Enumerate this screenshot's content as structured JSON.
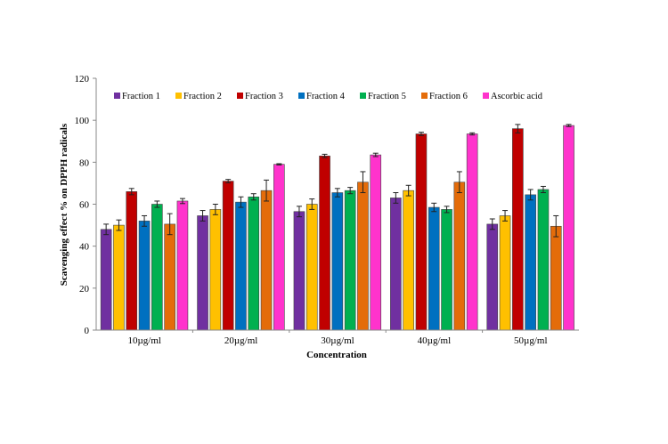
{
  "chart_data": {
    "type": "bar",
    "title": "",
    "xlabel": "Concentration",
    "ylabel": "Scavenging effect  % on DPPH radicals",
    "ylim": [
      0,
      120
    ],
    "yticks": [
      "0",
      "20",
      "40",
      "60",
      "80",
      "100",
      "120"
    ],
    "yticks_values": [
      0,
      20,
      40,
      60,
      80,
      100,
      120
    ],
    "grid": false,
    "legend_position": "top",
    "categories": [
      "10µg/ml",
      "20µg/ml",
      "30µg/ml",
      "40µg/ml",
      "50µg/ml"
    ],
    "series": [
      {
        "name": "Fraction 1",
        "color": "#7030a0",
        "values": [
          48,
          54.5,
          56.5,
          63,
          50.5
        ],
        "errors": [
          2.5,
          2.5,
          2.5,
          2.5,
          2.5
        ]
      },
      {
        "name": "Fraction 2",
        "color": "#ffc000",
        "values": [
          50,
          57.5,
          60,
          66.5,
          54.5
        ],
        "errors": [
          2.5,
          2.5,
          2.5,
          2.5,
          2.5
        ]
      },
      {
        "name": "Fraction 3",
        "color": "#c00000",
        "values": [
          66,
          71,
          83,
          93.5,
          96
        ],
        "errors": [
          1.5,
          0.8,
          0.8,
          0.8,
          2
        ]
      },
      {
        "name": "Fraction 4",
        "color": "#0070c0",
        "values": [
          52,
          61,
          65.5,
          58.5,
          64.5
        ],
        "errors": [
          2.5,
          2.5,
          2,
          2,
          2.5
        ]
      },
      {
        "name": "Fraction 5",
        "color": "#00b050",
        "values": [
          60,
          63.5,
          66.5,
          57.5,
          67
        ],
        "errors": [
          1.5,
          1.5,
          1.5,
          1.5,
          1.5
        ]
      },
      {
        "name": "Fraction 6",
        "color": "#e46c0a",
        "values": [
          50.5,
          66.5,
          70.5,
          70.5,
          49.5
        ],
        "errors": [
          5,
          5,
          5,
          5,
          5
        ]
      },
      {
        "name": "Ascorbic acid",
        "color": "#ff33cc",
        "values": [
          61.5,
          79,
          83.5,
          93.5,
          97.5
        ],
        "errors": [
          1.2,
          0.3,
          0.8,
          0.5,
          0.5
        ]
      }
    ]
  }
}
